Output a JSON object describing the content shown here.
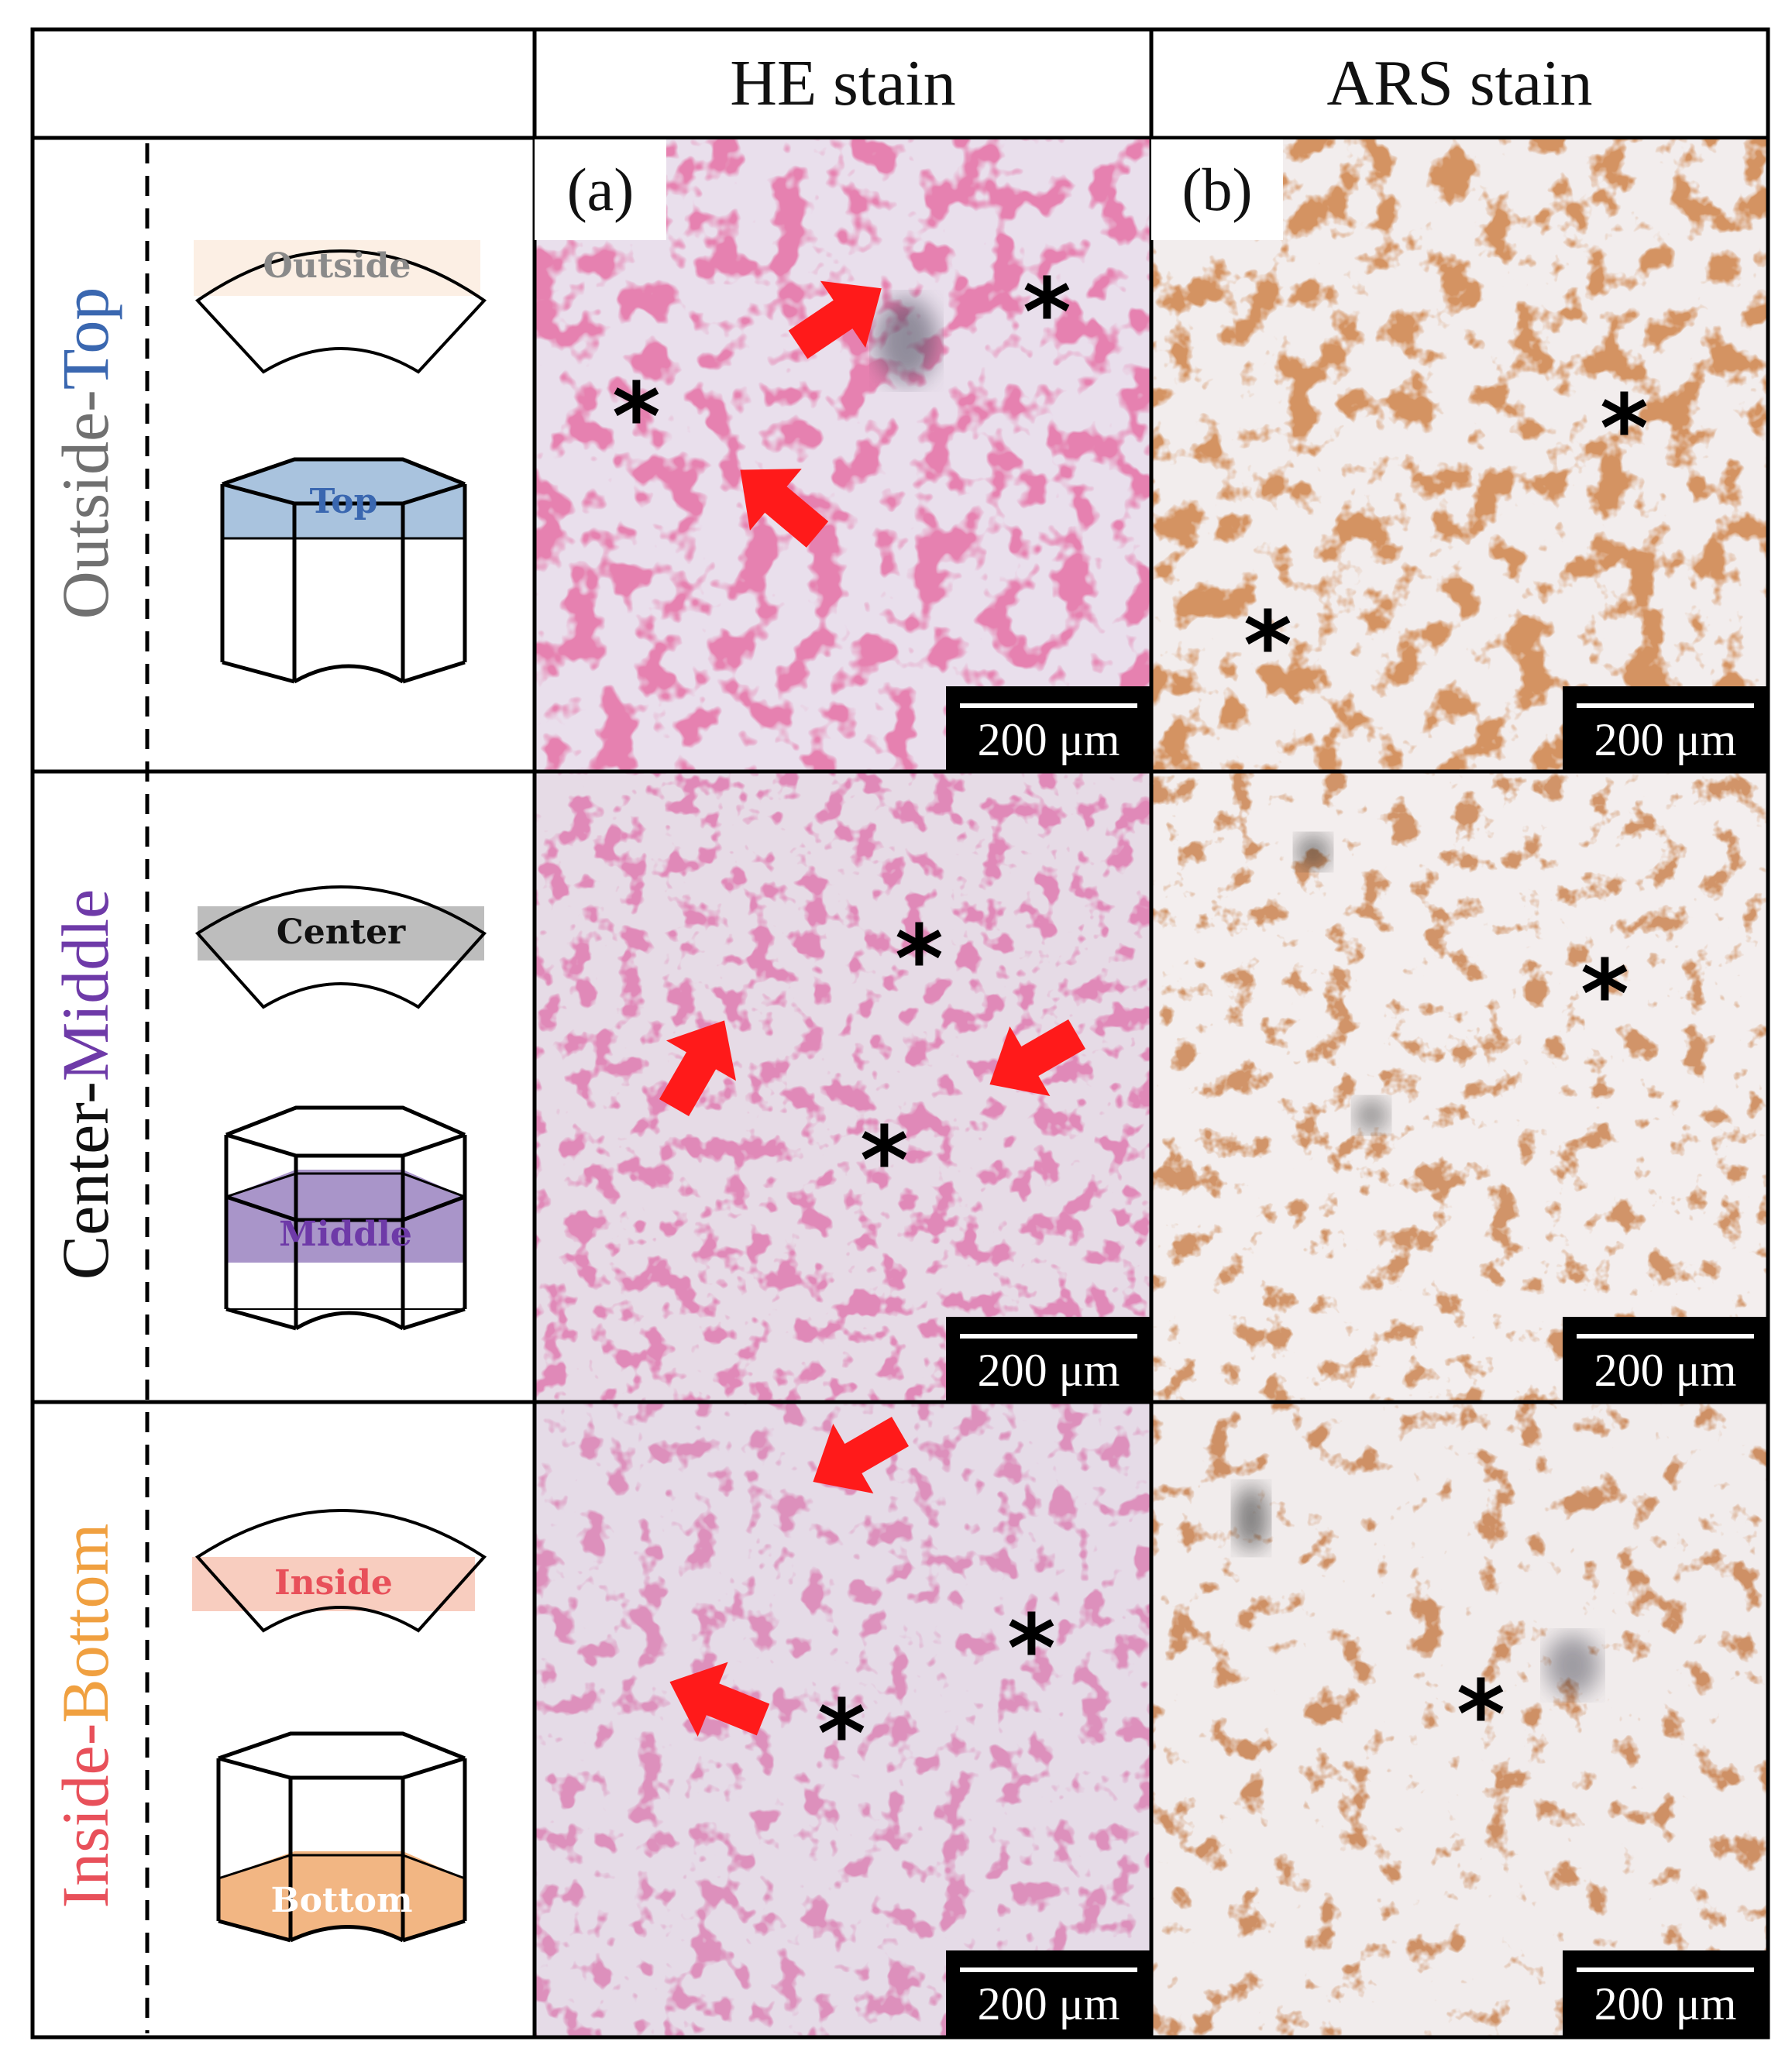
{
  "header": {
    "col_he": "HE stain",
    "col_ars": "ARS stain"
  },
  "rows": [
    {
      "title_part1": "Outside",
      "title_sep": "-",
      "title_part2": "Top",
      "color_part1": "#707070",
      "color_part2": "#3a67b0",
      "arc_label": "Outside",
      "arc_label_color": "#8a8a8a",
      "arc_band_color": "#fcefe4",
      "prism_label": "Top",
      "prism_label_color": "#3a67b0",
      "prism_band_color": "#a9c3de"
    },
    {
      "title_part1": "Center",
      "title_sep": "-",
      "title_part2": "Middle",
      "color_part1": "#111111",
      "color_part2": "#6e3aa8",
      "arc_label": "Center",
      "arc_label_color": "#111111",
      "arc_band_color": "#bdbdbd",
      "prism_label": "Middle",
      "prism_label_color": "#6e3aa8",
      "prism_band_color": "#a995c9"
    },
    {
      "title_part1": "Inside",
      "title_sep": "-",
      "title_part2": "Bottom",
      "color_part1": "#e8505a",
      "color_part2": "#f0a040",
      "arc_label": "Inside",
      "arc_label_color": "#e8505a",
      "arc_band_color": "#f8cdbf",
      "prism_label": "Bottom",
      "prism_label_color": "#ffffff",
      "prism_band_color": "#f2b683"
    }
  ],
  "panels": {
    "a_label": "(a)",
    "b_label": "(b)",
    "scale_text": "200 μm",
    "asterisk": "*"
  },
  "colors": {
    "he_bg": "#e8dbe8",
    "he_stain": "#c9386e",
    "ars_bg": "#f1ecec",
    "ars_stain": "#b0501f",
    "arrow": "#ff1a1a"
  }
}
